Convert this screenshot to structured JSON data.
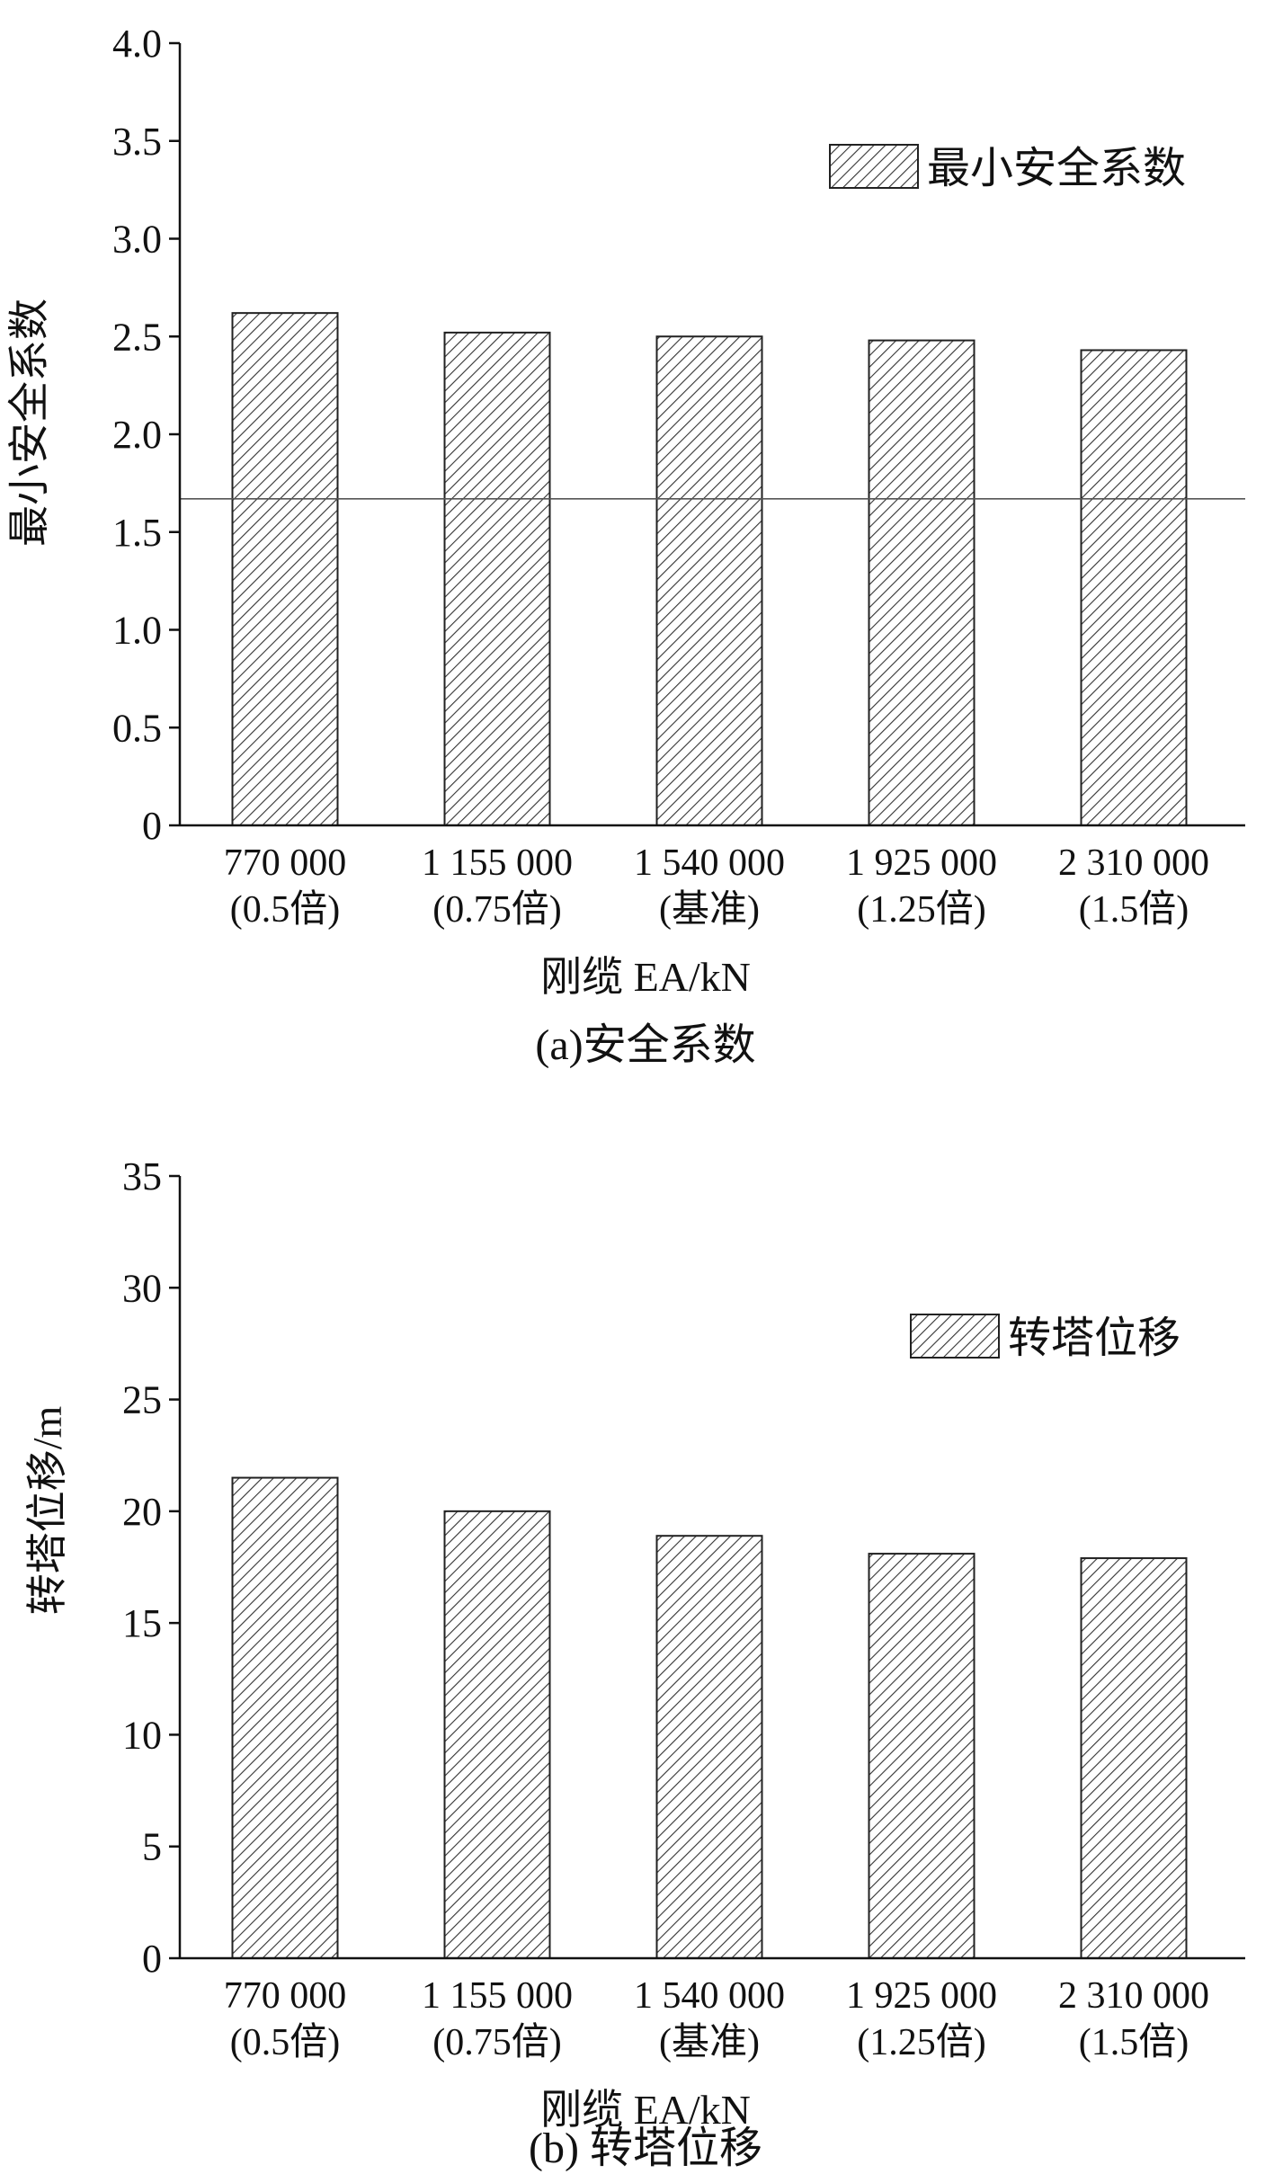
{
  "figure": {
    "charts": [
      {
        "id": "a",
        "caption": "(a)安全系数",
        "xlabel": "刚缆 EA/kN",
        "ylabel": "最小安全系数",
        "legend": "最小安全系数"
      },
      {
        "id": "b",
        "caption": "(b) 转塔位移",
        "xlabel": "刚缆 EA/kN",
        "ylabel": "转塔位移/m",
        "legend": "转塔位移"
      }
    ]
  },
  "chart_data": [
    {
      "type": "bar",
      "title": "",
      "caption": "(a)安全系数",
      "xlabel": "刚缆 EA/kN",
      "ylabel": "最小安全系数",
      "categories": [
        "770 000",
        "1 155 000",
        "1 540 000",
        "1 925 000",
        "2 310 000"
      ],
      "category_notes": [
        "(0.5倍)",
        "(0.75倍)",
        "(基准)",
        "(1.25倍)",
        "(1.5倍)"
      ],
      "series": [
        {
          "name": "最小安全系数",
          "values": [
            2.62,
            2.52,
            2.5,
            2.48,
            2.43
          ],
          "pattern": "diagonal-hatch"
        }
      ],
      "reference_line": {
        "y": 1.67
      },
      "ylim": [
        0,
        4.0
      ],
      "yticks": [
        "0",
        "0.5",
        "1.0",
        "1.5",
        "2.0",
        "2.5",
        "3.0",
        "3.5",
        "4.0"
      ],
      "legend_position": "top-right",
      "grid": false
    },
    {
      "type": "bar",
      "title": "",
      "caption": "(b) 转塔位移",
      "xlabel": "刚缆 EA/kN",
      "ylabel": "转塔位移/m",
      "categories": [
        "770 000",
        "1 155 000",
        "1 540 000",
        "1 925 000",
        "2 310 000"
      ],
      "category_notes": [
        "(0.5倍)",
        "(0.75倍)",
        "(基准)",
        "(1.25倍)",
        "(1.5倍)"
      ],
      "series": [
        {
          "name": "转塔位移",
          "values": [
            21.5,
            20.0,
            18.9,
            18.1,
            17.9
          ],
          "pattern": "diagonal-hatch"
        }
      ],
      "ylim": [
        0,
        35
      ],
      "yticks": [
        "0",
        "5",
        "10",
        "15",
        "20",
        "25",
        "30",
        "35"
      ],
      "legend_position": "top-right",
      "grid": false
    }
  ]
}
